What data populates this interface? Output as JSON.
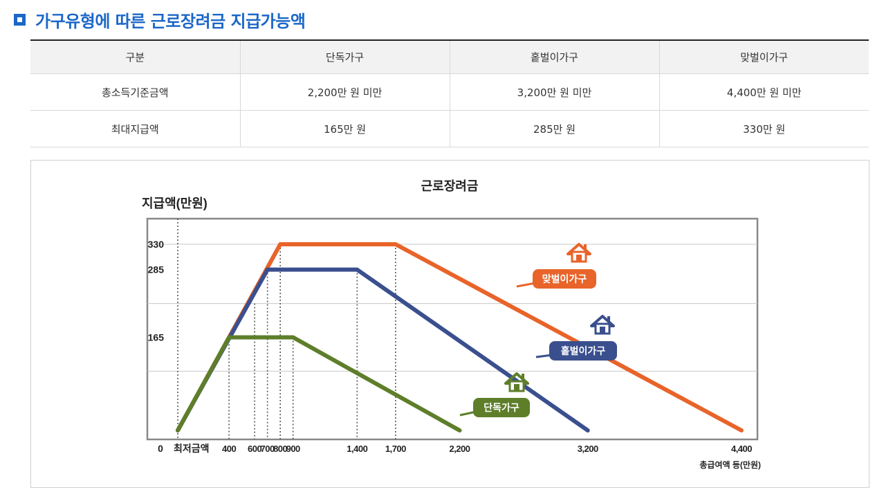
{
  "heading": {
    "title": "가구유형에 따른 근로장려금 지급가능액"
  },
  "table": {
    "headers": [
      "구분",
      "단독가구",
      "홑벌이가구",
      "맞벌이가구"
    ],
    "rows": [
      [
        "총소득기준금액",
        "2,200만 원 미만",
        "3,200만 원 미만",
        "4,400만 원 미만"
      ],
      [
        "최대지급액",
        "165만 원",
        "285만 원",
        "330만 원"
      ]
    ]
  },
  "chart_data": {
    "type": "line",
    "title": "근로장려금",
    "ylabel": "지급액(만원)",
    "xlabel": "총급여액 등(만원)",
    "x_origin_label": "0",
    "x_min_label": "최저금액",
    "xlim": [
      0,
      4400
    ],
    "ylim": [
      0,
      330
    ],
    "x_ticks": [
      400,
      600,
      700,
      800,
      900,
      1400,
      1700,
      2200,
      3200,
      4400
    ],
    "x_tick_labels": [
      "400",
      "600",
      "700",
      "800",
      "900",
      "1,400",
      "1,700",
      "2,200",
      "3,200",
      "4,400"
    ],
    "y_ticks": [
      165,
      285,
      330
    ],
    "y_tick_labels": [
      "165",
      "285",
      "330"
    ],
    "grid": true,
    "series": [
      {
        "name": "단독가구",
        "color": "#5e7e2a",
        "icon": "house-icon",
        "points": [
          [
            0,
            0
          ],
          [
            400,
            165
          ],
          [
            900,
            165
          ],
          [
            2200,
            0
          ]
        ]
      },
      {
        "name": "홑벌이가구",
        "color": "#3a4f8e",
        "icon": "house-icon",
        "points": [
          [
            0,
            0
          ],
          [
            700,
            285
          ],
          [
            1400,
            285
          ],
          [
            3200,
            0
          ]
        ]
      },
      {
        "name": "맞벌이가구",
        "color": "#e8642a",
        "icon": "house-icon",
        "points": [
          [
            0,
            0
          ],
          [
            800,
            330
          ],
          [
            1700,
            330
          ],
          [
            4400,
            0
          ]
        ]
      }
    ]
  }
}
